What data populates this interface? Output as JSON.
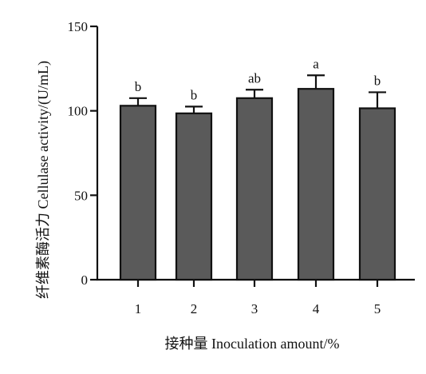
{
  "chart_data": {
    "type": "bar",
    "categories": [
      "1",
      "2",
      "3",
      "4",
      "5"
    ],
    "values": [
      103,
      98.5,
      107.5,
      113,
      101.5
    ],
    "errors": [
      4.5,
      4,
      5,
      8,
      9.5
    ],
    "significance": [
      "b",
      "b",
      "ab",
      "a",
      "b"
    ],
    "xlabel": "接种量  Inoculation amount/%",
    "ylabel": "纤维素酶活力  Cellulase activity/(U/mL)",
    "ylim": [
      0,
      150
    ],
    "yticks": [
      0,
      50,
      100,
      150
    ],
    "grid": false,
    "colors": {
      "bar": "#5a5a5a",
      "bar_edge": "#111111",
      "axis": "#111111"
    }
  }
}
